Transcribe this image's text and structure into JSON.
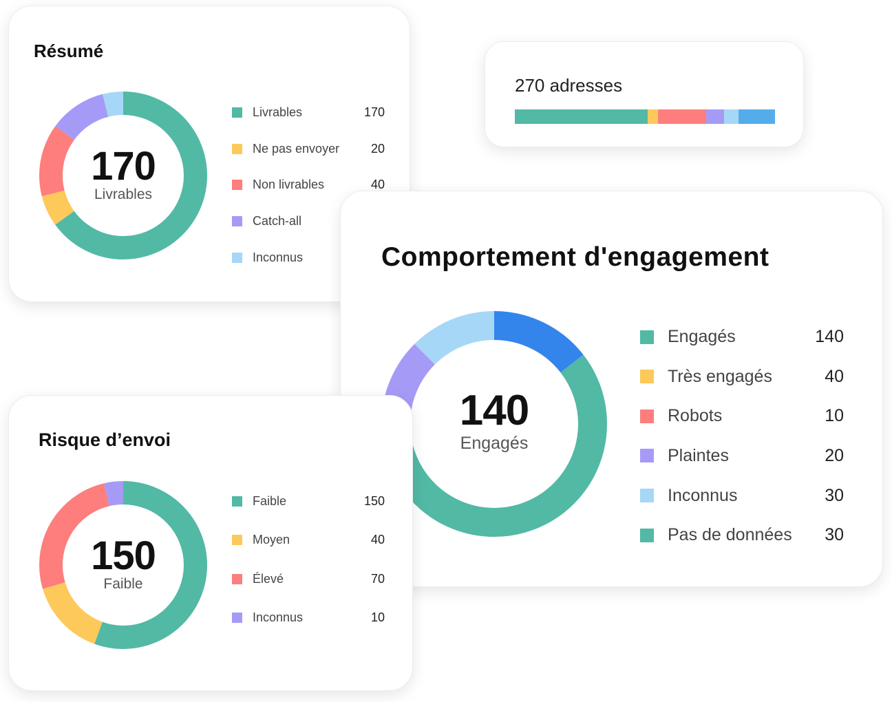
{
  "colors": {
    "green": "#52b9a4",
    "yellow": "#fdc95b",
    "red": "#fd7e7d",
    "purple": "#a59bf6",
    "lightblue": "#a7d7f6",
    "blue": "#3385ec",
    "barblue": "#54adeb"
  },
  "resume": {
    "title": "Résumé",
    "center_value": "170",
    "center_label": "Livrables"
  },
  "addresses": {
    "label": "270 adresses"
  },
  "engagement": {
    "title": "Comportement d'engagement",
    "center_value": "140",
    "center_label": "Engagés"
  },
  "risk": {
    "title": "Risque d’envoi",
    "center_value": "150",
    "center_label": "Faible"
  },
  "chart_data": [
    {
      "type": "pie",
      "title": "Résumé",
      "categories": [
        "Livrables",
        "Ne pas envoyer",
        "Non livrables",
        "Catch-all",
        "Inconnus"
      ],
      "values": [
        170,
        20,
        40,
        null,
        null
      ],
      "display_values": [
        "170",
        "20",
        "40",
        "",
        ""
      ],
      "slice_fractions": [
        0.65,
        0.06,
        0.14,
        0.11,
        0.04
      ],
      "colors": [
        "#52b9a4",
        "#fdc95b",
        "#fd7e7d",
        "#a59bf6",
        "#a7d7f6"
      ]
    },
    {
      "type": "bar",
      "title": "270 adresses",
      "orientation": "stacked-horizontal",
      "segment_fractions": [
        0.51,
        0.04,
        0.185,
        0.07,
        0.055,
        0.14
      ],
      "colors": [
        "#52b9a4",
        "#fdc95b",
        "#fd7e7d",
        "#a59bf6",
        "#a7d7f6",
        "#54adeb"
      ]
    },
    {
      "type": "pie",
      "title": "Comportement d'engagement",
      "categories": [
        "Engagés",
        "Très engagés",
        "Robots",
        "Plaintes",
        "Inconnus",
        "Pas de données"
      ],
      "values": [
        140,
        40,
        10,
        20,
        30,
        30
      ],
      "display_values": [
        "140",
        "40",
        "10",
        "20",
        "30",
        "30"
      ],
      "colors": [
        "#52b9a4",
        "#fdc95b",
        "#fd7e7d",
        "#a59bf6",
        "#a7d7f6",
        "#52b9a4"
      ],
      "ring_segments": [
        {
          "color": "#3385ec",
          "fraction": 0.145
        },
        {
          "color": "#52b9a4",
          "fraction": 0.605
        },
        {
          "color": "#a59bf6",
          "fraction": 0.125
        },
        {
          "color": "#a7d7f6",
          "fraction": 0.125
        }
      ]
    },
    {
      "type": "pie",
      "title": "Risque d’envoi",
      "categories": [
        "Faible",
        "Moyen",
        "Élevé",
        "Inconnus"
      ],
      "values": [
        150,
        40,
        70,
        10
      ],
      "display_values": [
        "150",
        "40",
        "70",
        "10"
      ],
      "colors": [
        "#52b9a4",
        "#fdc95b",
        "#fd7e7d",
        "#a59bf6"
      ]
    }
  ]
}
